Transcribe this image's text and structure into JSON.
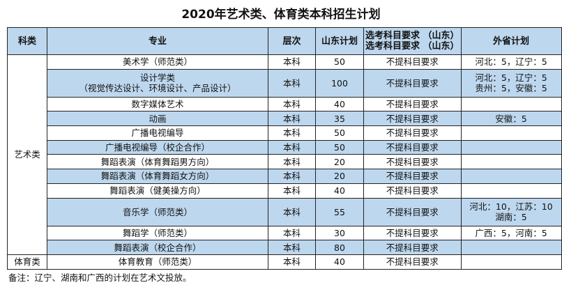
{
  "title": "2020年艺术类、体育类本科招生计划",
  "headers": [
    "科类",
    "专业",
    "层次",
    "山东计划",
    "选考科目要求\n（山东）",
    "外省计划"
  ],
  "categories": [
    {
      "name": "艺术类",
      "rows": 12
    },
    {
      "name": "体育类",
      "rows": 1
    }
  ],
  "rows": [
    {
      "major": [
        "美术学（师范类）"
      ],
      "level": "本科",
      "sd": "50",
      "req": "不提科目要求",
      "other": [
        "河北：5，辽宁：5"
      ]
    },
    {
      "major": [
        "设计学类",
        "（视觉传达设计、环境设计、产品设计）"
      ],
      "level": "本科",
      "sd": "100",
      "req": "不提科目要求",
      "other": [
        "河北：5，辽宁：5",
        "贵州：5，安徽：5"
      ]
    },
    {
      "major": [
        "数字媒体艺术"
      ],
      "level": "本科",
      "sd": "40",
      "req": "不提科目要求",
      "other": []
    },
    {
      "major": [
        "动画"
      ],
      "level": "本科",
      "sd": "35",
      "req": "不提科目要求",
      "other": [
        "安徽：5"
      ]
    },
    {
      "major": [
        "广播电视编导"
      ],
      "level": "本科",
      "sd": "50",
      "req": "不提科目要求",
      "other": []
    },
    {
      "major": [
        "广播电视编导（校企合作）"
      ],
      "level": "本科",
      "sd": "50",
      "req": "不提科目要求",
      "other": []
    },
    {
      "major": [
        "舞蹈表演（体育舞蹈男方向）"
      ],
      "level": "本科",
      "sd": "20",
      "req": "不提科目要求",
      "other": []
    },
    {
      "major": [
        "舞蹈表演（体育舞蹈女方向）"
      ],
      "level": "本科",
      "sd": "20",
      "req": "不提科目要求",
      "other": []
    },
    {
      "major": [
        "舞蹈表演（健美操方向）"
      ],
      "level": "本科",
      "sd": "40",
      "req": "不提科目要求",
      "other": []
    },
    {
      "major": [
        "音乐学（师范类）"
      ],
      "level": "本科",
      "sd": "55",
      "req": "不提科目要求",
      "other": [
        "河北：10，江苏：10",
        "湖南：5"
      ]
    },
    {
      "major": [
        "舞蹈学（师范类）"
      ],
      "level": "本科",
      "sd": "30",
      "req": "不提科目要求",
      "other": [
        "广西：5，河南：5"
      ]
    },
    {
      "major": [
        "舞蹈表演（校企合作）"
      ],
      "level": "本科",
      "sd": "80",
      "req": "不提科目要求",
      "other": []
    },
    {
      "major": [
        "体育教育（师范类）"
      ],
      "level": "本科",
      "sd": "40",
      "req": "不提科目要求",
      "other": []
    }
  ],
  "note": "备注：辽宁、湖南和广西的计划在艺术文投放。",
  "colors": {
    "header_bg": "#bdd7ee",
    "alt_row_bg": "#bdd7ee"
  }
}
